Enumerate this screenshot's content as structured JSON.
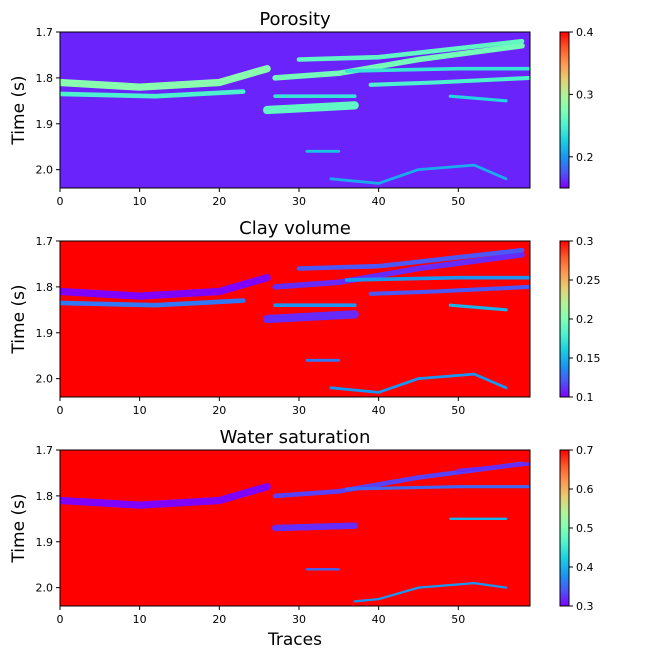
{
  "colormap": "rainbow",
  "colormap_stops": [
    "#8000ff",
    "#4b57f8",
    "#1996f3",
    "#19cee3",
    "#4cf2ce",
    "#80ffb4",
    "#b2f296",
    "#e6ce74",
    "#ff9650",
    "#ff5728",
    "#ff0000"
  ],
  "chart_data": [
    {
      "type": "heatmap",
      "title": "Porosity",
      "ylabel": "Time (s)",
      "xlabel": "",
      "xlim": [
        0,
        59
      ],
      "ylim": [
        2.04,
        1.7
      ],
      "xticks": [
        0,
        10,
        20,
        30,
        40,
        50
      ],
      "yticks": [
        1.7,
        1.8,
        1.9,
        2.0
      ],
      "colorbar": {
        "min": 0.15,
        "max": 0.4,
        "ticks": [
          0.2,
          0.3,
          0.4
        ]
      },
      "background_value": 0.16,
      "features": [
        {
          "points": [
            [
              0,
              1.81
            ],
            [
              10,
              1.82
            ],
            [
              20,
              1.81
            ],
            [
              26,
              1.78
            ]
          ],
          "value": 0.28,
          "width": 0.016
        },
        {
          "points": [
            [
              0,
              1.835
            ],
            [
              12,
              1.84
            ],
            [
              23,
              1.83
            ]
          ],
          "value": 0.25,
          "width": 0.01
        },
        {
          "points": [
            [
              27,
              1.8
            ],
            [
              35,
              1.79
            ],
            [
              45,
              1.76
            ],
            [
              58,
              1.73
            ]
          ],
          "value": 0.27,
          "width": 0.012
        },
        {
          "points": [
            [
              30,
              1.76
            ],
            [
              40,
              1.755
            ],
            [
              58,
              1.72
            ]
          ],
          "value": 0.26,
          "width": 0.01
        },
        {
          "points": [
            [
              36,
              1.785
            ],
            [
              50,
              1.78
            ],
            [
              59,
              1.78
            ]
          ],
          "value": 0.24,
          "width": 0.008
        },
        {
          "points": [
            [
              39,
              1.815
            ],
            [
              47,
              1.81
            ],
            [
              59,
              1.8
            ]
          ],
          "value": 0.25,
          "width": 0.009
        },
        {
          "points": [
            [
              26,
              1.87
            ],
            [
              37,
              1.86
            ]
          ],
          "value": 0.26,
          "width": 0.018
        },
        {
          "points": [
            [
              27,
              1.84
            ],
            [
              37,
              1.84
            ]
          ],
          "value": 0.24,
          "width": 0.008
        },
        {
          "points": [
            [
              49,
              1.84
            ],
            [
              56,
              1.85
            ]
          ],
          "value": 0.23,
          "width": 0.007
        },
        {
          "points": [
            [
              31,
              1.96
            ],
            [
              35,
              1.96
            ]
          ],
          "value": 0.22,
          "width": 0.006
        },
        {
          "points": [
            [
              34,
              2.02
            ],
            [
              40,
              2.03
            ],
            [
              45,
              2.0
            ],
            [
              52,
              1.99
            ],
            [
              56,
              2.02
            ]
          ],
          "value": 0.21,
          "width": 0.006
        }
      ]
    },
    {
      "type": "heatmap",
      "title": "Clay volume",
      "ylabel": "Time (s)",
      "xlabel": "",
      "xlim": [
        0,
        59
      ],
      "ylim": [
        2.04,
        1.7
      ],
      "xticks": [
        0,
        10,
        20,
        30,
        40,
        50
      ],
      "yticks": [
        1.7,
        1.8,
        1.9,
        2.0
      ],
      "colorbar": {
        "min": 0.1,
        "max": 0.3,
        "ticks": [
          0.1,
          0.15,
          0.2,
          0.25,
          0.3
        ]
      },
      "background_value": 0.3,
      "features": [
        {
          "points": [
            [
              0,
              1.81
            ],
            [
              10,
              1.82
            ],
            [
              20,
              1.81
            ],
            [
              26,
              1.78
            ]
          ],
          "value": 0.1,
          "width": 0.016
        },
        {
          "points": [
            [
              0,
              1.835
            ],
            [
              12,
              1.84
            ],
            [
              23,
              1.83
            ]
          ],
          "value": 0.13,
          "width": 0.01
        },
        {
          "points": [
            [
              27,
              1.8
            ],
            [
              35,
              1.79
            ],
            [
              45,
              1.76
            ],
            [
              58,
              1.73
            ]
          ],
          "value": 0.11,
          "width": 0.012
        },
        {
          "points": [
            [
              30,
              1.76
            ],
            [
              40,
              1.755
            ],
            [
              58,
              1.72
            ]
          ],
          "value": 0.12,
          "width": 0.01
        },
        {
          "points": [
            [
              36,
              1.785
            ],
            [
              50,
              1.78
            ],
            [
              59,
              1.78
            ]
          ],
          "value": 0.14,
          "width": 0.008
        },
        {
          "points": [
            [
              39,
              1.815
            ],
            [
              47,
              1.81
            ],
            [
              59,
              1.8
            ]
          ],
          "value": 0.12,
          "width": 0.009
        },
        {
          "points": [
            [
              26,
              1.87
            ],
            [
              37,
              1.86
            ]
          ],
          "value": 0.11,
          "width": 0.018
        },
        {
          "points": [
            [
              27,
              1.84
            ],
            [
              37,
              1.84
            ]
          ],
          "value": 0.14,
          "width": 0.008
        },
        {
          "points": [
            [
              49,
              1.84
            ],
            [
              56,
              1.85
            ]
          ],
          "value": 0.15,
          "width": 0.007
        },
        {
          "points": [
            [
              31,
              1.96
            ],
            [
              35,
              1.96
            ]
          ],
          "value": 0.13,
          "width": 0.006
        },
        {
          "points": [
            [
              34,
              2.02
            ],
            [
              40,
              2.03
            ],
            [
              45,
              2.0
            ],
            [
              52,
              1.99
            ],
            [
              56,
              2.02
            ]
          ],
          "value": 0.14,
          "width": 0.006
        }
      ]
    },
    {
      "type": "heatmap",
      "title": "Water saturation",
      "ylabel": "Time (s)",
      "xlabel": "Traces",
      "xlim": [
        0,
        59
      ],
      "ylim": [
        2.04,
        1.7
      ],
      "xticks": [
        0,
        10,
        20,
        30,
        40,
        50
      ],
      "yticks": [
        1.7,
        1.8,
        1.9,
        2.0
      ],
      "colorbar": {
        "min": 0.3,
        "max": 0.7,
        "ticks": [
          0.3,
          0.4,
          0.5,
          0.6,
          0.7
        ]
      },
      "background_value": 0.7,
      "features": [
        {
          "points": [
            [
              0,
              1.81
            ],
            [
              10,
              1.82
            ],
            [
              20,
              1.81
            ],
            [
              26,
              1.78
            ]
          ],
          "value": 0.3,
          "width": 0.016
        },
        {
          "points": [
            [
              27,
              1.8
            ],
            [
              35,
              1.79
            ],
            [
              45,
              1.76
            ],
            [
              58,
              1.73
            ]
          ],
          "value": 0.33,
          "width": 0.01
        },
        {
          "points": [
            [
              36,
              1.785
            ],
            [
              50,
              1.78
            ],
            [
              59,
              1.78
            ]
          ],
          "value": 0.35,
          "width": 0.007
        },
        {
          "points": [
            [
              50,
              1.745
            ],
            [
              59,
              1.73
            ]
          ],
          "value": 0.32,
          "width": 0.008
        },
        {
          "points": [
            [
              27,
              1.87
            ],
            [
              37,
              1.865
            ]
          ],
          "value": 0.32,
          "width": 0.014
        },
        {
          "points": [
            [
              49,
              1.85
            ],
            [
              56,
              1.85
            ]
          ],
          "value": 0.4,
          "width": 0.005
        },
        {
          "points": [
            [
              31,
              1.96
            ],
            [
              35,
              1.96
            ]
          ],
          "value": 0.35,
          "width": 0.005
        },
        {
          "points": [
            [
              37,
              2.03
            ],
            [
              40,
              2.025
            ],
            [
              45,
              2.0
            ],
            [
              52,
              1.99
            ],
            [
              56,
              2.0
            ]
          ],
          "value": 0.38,
          "width": 0.005
        }
      ]
    }
  ]
}
